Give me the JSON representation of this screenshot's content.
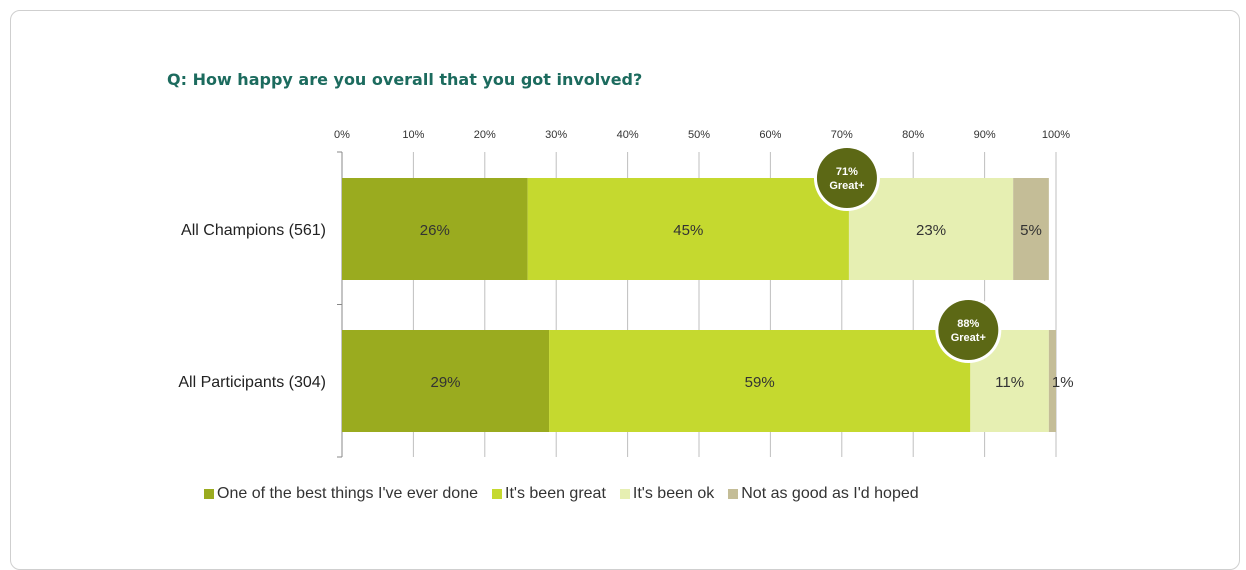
{
  "chart_data": {
    "type": "bar",
    "orientation": "horizontal",
    "stacked": true,
    "title": "Q: How happy are you overall that you got involved?",
    "categories": [
      "All Champions (561)",
      "All Participants (304)"
    ],
    "xlim": [
      0,
      100
    ],
    "x_ticks": [
      "0%",
      "10%",
      "20%",
      "30%",
      "40%",
      "50%",
      "60%",
      "70%",
      "80%",
      "90%",
      "100%"
    ],
    "grid": true,
    "legend_position": "bottom",
    "series": [
      {
        "name": "One of the best things I've ever done",
        "values": [
          26,
          29
        ],
        "labels": [
          "26%",
          "29%"
        ],
        "color": "#9aab1f"
      },
      {
        "name": "It's been great",
        "values": [
          45,
          59
        ],
        "labels": [
          "45%",
          "59%"
        ],
        "color": "#c5d92f"
      },
      {
        "name": "It's been ok",
        "values": [
          23,
          11
        ],
        "labels": [
          "23%",
          "11%"
        ],
        "color": "#e6efb2"
      },
      {
        "name": "Not as good as I'd hoped",
        "values": [
          5,
          1
        ],
        "labels": [
          "5%",
          "1%"
        ],
        "color": "#c4bd97"
      }
    ],
    "annotations": [
      {
        "category": "All Champions (561)",
        "value": 71,
        "line1": "71%",
        "line2": "Great+"
      },
      {
        "category": "All Participants (304)",
        "value": 88,
        "line1": "88%",
        "line2": "Great+"
      }
    ],
    "annotation_color": "#5c6815"
  }
}
